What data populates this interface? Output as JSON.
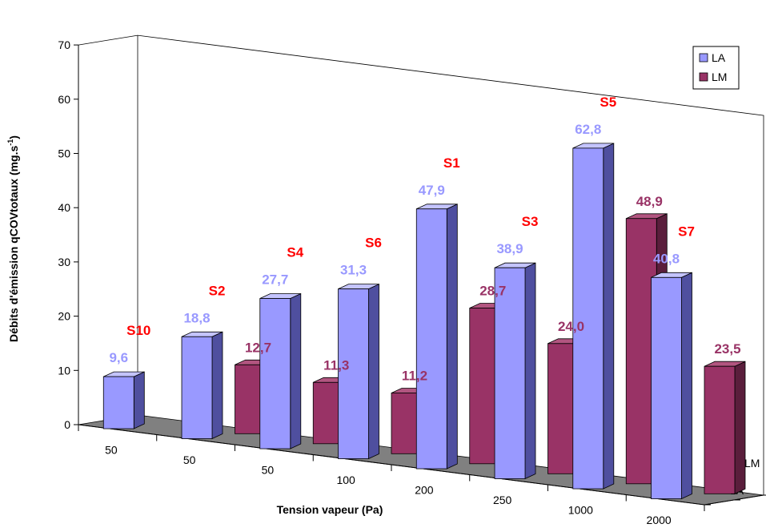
{
  "chart_data": {
    "type": "bar",
    "variant": "3d-clustered",
    "xlabel": "Tension vapeur (Pa)",
    "ylabel": "Débits d'émission qCOVtotaux (mg.s",
    "ylabel_sup": "-1",
    "ylabel_close": ")",
    "ylim": [
      0,
      70
    ],
    "yticks": [
      "0",
      "10",
      "20",
      "30",
      "40",
      "50",
      "60",
      "70"
    ],
    "depth_labels": [
      "LA",
      "LM"
    ],
    "groups": [
      {
        "sample": "S10",
        "x": "50",
        "LA": 9.6,
        "LA_label": "9,6",
        "LM": null,
        "LM_label": ""
      },
      {
        "sample": "S2",
        "x": "50",
        "LA": 18.8,
        "LA_label": "18,8",
        "LM": 12.7,
        "LM_label": "12,7"
      },
      {
        "sample": "S4",
        "x": "50",
        "LA": 27.7,
        "LA_label": "27,7",
        "LM": 11.3,
        "LM_label": "11,3"
      },
      {
        "sample": "S6",
        "x": "100",
        "LA": 31.3,
        "LA_label": "31,3",
        "LM": 11.2,
        "LM_label": "11,2"
      },
      {
        "sample": "S1",
        "x": "200",
        "LA": 47.9,
        "LA_label": "47,9",
        "LM": 28.7,
        "LM_label": "28,7"
      },
      {
        "sample": "S3",
        "x": "250",
        "LA": 38.9,
        "LA_label": "38,9",
        "LM": 24.0,
        "LM_label": "24,0"
      },
      {
        "sample": "S5",
        "x": "1000",
        "LA": 62.8,
        "LA_label": "62,8",
        "LM": 48.9,
        "LM_label": "48,9"
      },
      {
        "sample": "S7",
        "x": "2000",
        "LA": 40.8,
        "LA_label": "40,8",
        "LM": 23.5,
        "LM_label": "23,5"
      }
    ],
    "legend": {
      "position": "top-right",
      "entries": [
        {
          "name": "LA",
          "color": "#9999ff"
        },
        {
          "name": "LM",
          "color": "#993366"
        }
      ]
    },
    "colors": {
      "LA_front": "#9999ff",
      "LA_side": "#4f4f9f",
      "LA_top": "#c4c4ff",
      "LA_label": "#9999ff",
      "LM_front": "#993366",
      "LM_side": "#5a1e3c",
      "LM_top": "#b25580",
      "LM_label": "#993366",
      "floor": "#808080",
      "sample_label": "#ff0000"
    }
  }
}
